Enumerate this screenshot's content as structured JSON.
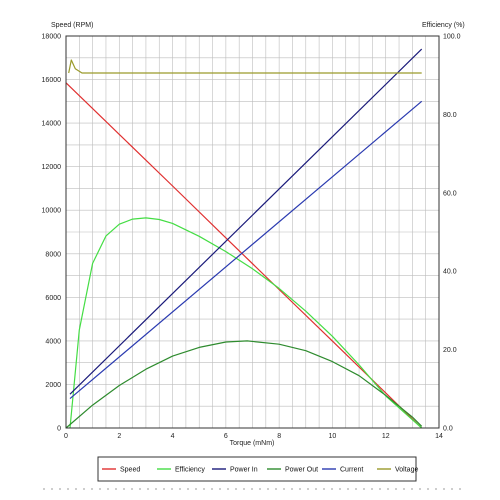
{
  "chart_data": {
    "type": "line",
    "ylabel_left": "Speed (RPM)",
    "ylabel_right": "Efficiency (%)",
    "xlabel": "Torque (mNm)",
    "xlim": [
      0,
      14
    ],
    "ylim_left": [
      0,
      18000
    ],
    "ylim_right": [
      0,
      100
    ],
    "x_ticks": [
      "0",
      "2",
      "4",
      "6",
      "8",
      "10",
      "12",
      "14"
    ],
    "y_left_ticks": [
      "0",
      "2000",
      "4000",
      "6000",
      "8000",
      "10000",
      "12000",
      "14000",
      "16000",
      "18000"
    ],
    "y_right_ticks": [
      "0.0",
      "20.0",
      "40.0",
      "60.0",
      "80.0",
      "100.0"
    ],
    "grid": true,
    "legend_position": "bottom",
    "series": [
      {
        "name": "Speed",
        "color": "#e03030",
        "axis": "left",
        "points": [
          [
            0,
            15850
          ],
          [
            2,
            13480
          ],
          [
            4,
            11110
          ],
          [
            6,
            8730
          ],
          [
            8,
            6360
          ],
          [
            10,
            3990
          ],
          [
            12,
            1610
          ],
          [
            13.35,
            0
          ]
        ]
      },
      {
        "name": "Efficiency",
        "color": "#44dd44",
        "axis": "right",
        "points": [
          [
            0.15,
            0
          ],
          [
            0.5,
            25
          ],
          [
            1,
            42
          ],
          [
            1.5,
            49
          ],
          [
            2,
            52
          ],
          [
            2.5,
            53.3
          ],
          [
            3,
            53.6
          ],
          [
            3.5,
            53.2
          ],
          [
            4,
            52.2
          ],
          [
            5,
            48.9
          ],
          [
            6,
            45
          ],
          [
            7,
            40.6
          ],
          [
            8,
            35.6
          ],
          [
            9,
            29.8
          ],
          [
            10,
            23.4
          ],
          [
            11,
            16.1
          ],
          [
            12,
            8.2
          ],
          [
            13.35,
            0
          ]
        ]
      },
      {
        "name": "Power In",
        "color": "#1a1a7a",
        "axis": "left",
        "points": [
          [
            0.15,
            1550
          ],
          [
            13.35,
            17400
          ]
        ]
      },
      {
        "name": "Power Out",
        "color": "#2e8b2e",
        "axis": "left",
        "points": [
          [
            0,
            0
          ],
          [
            1,
            1050
          ],
          [
            2,
            1950
          ],
          [
            3,
            2700
          ],
          [
            4,
            3300
          ],
          [
            5,
            3700
          ],
          [
            6,
            3950
          ],
          [
            6.8,
            4000
          ],
          [
            8,
            3850
          ],
          [
            9,
            3550
          ],
          [
            10,
            3050
          ],
          [
            11,
            2400
          ],
          [
            12,
            1500
          ],
          [
            13,
            500
          ],
          [
            13.35,
            80
          ]
        ]
      },
      {
        "name": "Current",
        "color": "#2a3ab0",
        "axis": "left",
        "points": [
          [
            0.15,
            1350
          ],
          [
            13.35,
            15000
          ]
        ]
      },
      {
        "name": "Voltage",
        "color": "#9a9a2a",
        "axis": "left",
        "points": [
          [
            0.1,
            16300
          ],
          [
            0.2,
            16900
          ],
          [
            0.35,
            16500
          ],
          [
            0.6,
            16300
          ],
          [
            13.35,
            16300
          ]
        ]
      }
    ]
  }
}
